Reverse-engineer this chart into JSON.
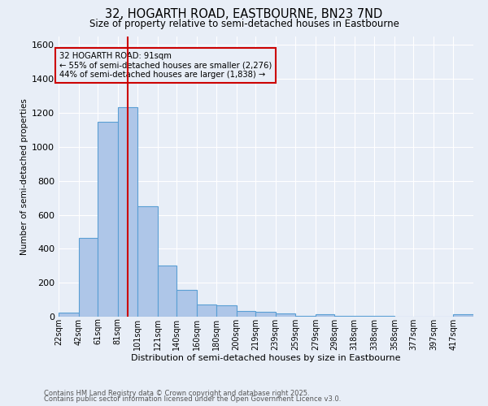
{
  "title1": "32, HOGARTH ROAD, EASTBOURNE, BN23 7ND",
  "title2": "Size of property relative to semi-detached houses in Eastbourne",
  "xlabel": "Distribution of semi-detached houses by size in Eastbourne",
  "ylabel": "Number of semi-detached properties",
  "bar_labels": [
    "22sqm",
    "42sqm",
    "61sqm",
    "81sqm",
    "101sqm",
    "121sqm",
    "140sqm",
    "160sqm",
    "180sqm",
    "200sqm",
    "219sqm",
    "239sqm",
    "259sqm",
    "279sqm",
    "298sqm",
    "318sqm",
    "338sqm",
    "358sqm",
    "377sqm",
    "397sqm",
    "417sqm"
  ],
  "bar_values": [
    25,
    465,
    1150,
    1235,
    650,
    300,
    160,
    70,
    65,
    35,
    30,
    20,
    5,
    15,
    5,
    5,
    5,
    2,
    2,
    2,
    15
  ],
  "bar_color": "#aec6e8",
  "bar_edge_color": "#5a9fd4",
  "bg_color": "#e8eef7",
  "grid_color": "#ffffff",
  "annotation_box_color": "#cc0000",
  "annotation_text": "32 HOGARTH ROAD: 91sqm\n← 55% of semi-detached houses are smaller (2,276)\n44% of semi-detached houses are larger (1,838) →",
  "vline_x": 91,
  "vline_color": "#cc0000",
  "footer1": "Contains HM Land Registry data © Crown copyright and database right 2025.",
  "footer2": "Contains public sector information licensed under the Open Government Licence v3.0.",
  "ylim": [
    0,
    1650
  ],
  "bin_edges": [
    22,
    42,
    61,
    81,
    101,
    121,
    140,
    160,
    180,
    200,
    219,
    239,
    259,
    279,
    298,
    318,
    338,
    358,
    377,
    397,
    417,
    437
  ]
}
